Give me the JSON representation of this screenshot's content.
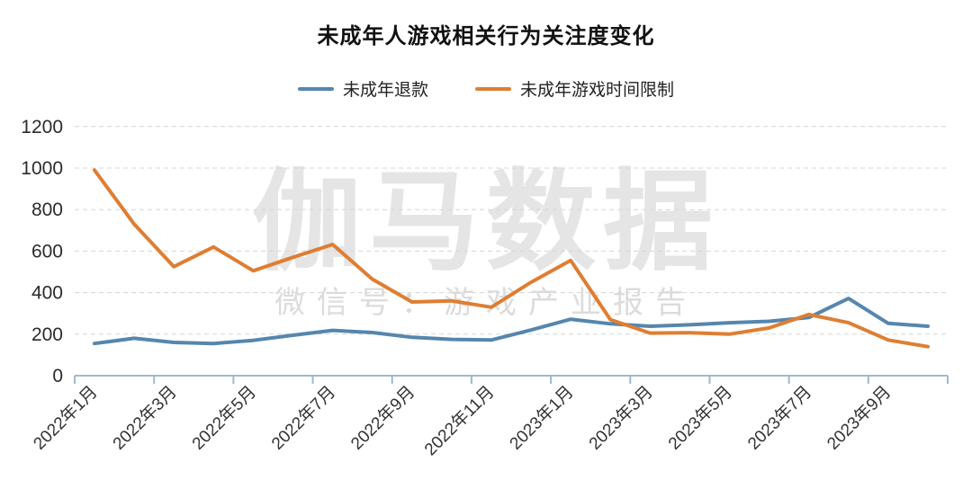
{
  "title": "未成年人游戏相关行为关注度变化",
  "legend": {
    "items": [
      {
        "label": "未成年退款",
        "color": "#5586AE"
      },
      {
        "label": "未成年游戏时间限制",
        "color": "#DE7E33"
      }
    ]
  },
  "watermark": {
    "line1": "伽马数据",
    "line2": "微信号：游戏产业报告"
  },
  "chart_data": {
    "type": "line",
    "title": "未成年人游戏相关行为关注度变化",
    "categories": [
      "2022年1月",
      "2022年2月",
      "2022年3月",
      "2022年4月",
      "2022年5月",
      "2022年6月",
      "2022年7月",
      "2022年8月",
      "2022年9月",
      "2022年10月",
      "2022年11月",
      "2022年12月",
      "2023年1月",
      "2023年2月",
      "2023年3月",
      "2023年4月",
      "2023年5月",
      "2023年6月",
      "2023年7月",
      "2023年8月",
      "2023年9月",
      "2023年10月"
    ],
    "x_tick_labels": [
      "2022年1月",
      "2022年3月",
      "2022年5月",
      "2022年7月",
      "2022年9月",
      "2022年11月",
      "2023年1月",
      "2023年3月",
      "2023年5月",
      "2023年7月",
      "2023年9月"
    ],
    "x_tick_label_every": 2,
    "series": [
      {
        "name": "未成年退款",
        "color": "#5586AE",
        "values": [
          155,
          180,
          160,
          155,
          170,
          195,
          218,
          208,
          185,
          175,
          172,
          220,
          272,
          250,
          238,
          245,
          255,
          262,
          280,
          372,
          252,
          238
        ]
      },
      {
        "name": "未成年游戏时间限制",
        "color": "#DE7E33",
        "values": [
          990,
          730,
          525,
          620,
          505,
          570,
          632,
          465,
          355,
          360,
          330,
          450,
          555,
          270,
          205,
          207,
          200,
          230,
          295,
          255,
          172,
          140
        ]
      }
    ],
    "ylim": [
      0,
      1200
    ],
    "y_ticks": [
      0,
      200,
      400,
      600,
      800,
      1000,
      1200
    ],
    "grid": "horizontal-dashed",
    "grid_color": "#d6d6d6",
    "axis_line_color": "#9fb9ca",
    "legend_position": "top"
  }
}
